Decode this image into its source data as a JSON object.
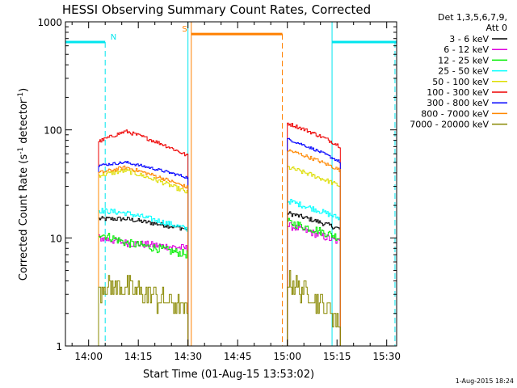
{
  "chart_data": {
    "type": "line",
    "title": "HESSI Observing Summary Count Rates, Corrected",
    "xlabel": "Start Time (01-Aug-15 13:53:02)",
    "ylabel": "Corrected Count Rate (s⁻¹ detector⁻¹)",
    "ylabel_parts": {
      "a": "Corrected Count Rate (s",
      "b": "-1",
      "c": " detector",
      "d": "-1",
      "e": ")"
    },
    "y_scale": "log",
    "ylim": [
      1,
      1000
    ],
    "xlim_minutes_after_13_53_02": [
      0,
      100
    ],
    "x_ticks": [
      {
        "label": "14:00",
        "t": 7
      },
      {
        "label": "14:15",
        "t": 22
      },
      {
        "label": "14:30",
        "t": 37
      },
      {
        "label": "14:45",
        "t": 52
      },
      {
        "label": "15:00",
        "t": 67
      },
      {
        "label": "15:15",
        "t": 82
      },
      {
        "label": "15:30",
        "t": 97
      }
    ],
    "y_ticks": [
      {
        "label": "1",
        "v": 1
      },
      {
        "label": "10",
        "v": 10
      },
      {
        "label": "100",
        "v": 100
      },
      {
        "label": "1000",
        "v": 1000
      }
    ],
    "legend": {
      "header_line1": "Det 1,3,5,6,7,9,",
      "header_line2": "Att 0",
      "placement": "right"
    },
    "series": [
      {
        "name": "3 - 6 keV",
        "color": "#000000",
        "seg1": {
          "start": 15,
          "peak": 15,
          "end": 12
        },
        "seg2": {
          "start": 17,
          "end": 12
        },
        "noise": 0.05
      },
      {
        "name": "6 - 12 keV",
        "color": "#dd00dd",
        "seg1": {
          "start": 10,
          "peak": 9,
          "end": 8
        },
        "seg2": {
          "start": 13,
          "end": 9
        },
        "noise": 0.08
      },
      {
        "name": "12 - 25 keV",
        "color": "#00ee00",
        "seg1": {
          "start": 11,
          "peak": 9,
          "end": 7
        },
        "seg2": {
          "start": 14,
          "end": 10
        },
        "noise": 0.09
      },
      {
        "name": "25 - 50 keV",
        "color": "#00ffff",
        "seg1": {
          "start": 18,
          "peak": 17,
          "end": 12
        },
        "seg2": {
          "start": 22,
          "end": 15
        },
        "noise": 0.06
      },
      {
        "name": "50 - 100 keV",
        "color": "#dddd00",
        "seg1": {
          "start": 38,
          "peak": 42,
          "end": 26
        },
        "seg2": {
          "start": 45,
          "end": 30
        },
        "noise": 0.05
      },
      {
        "name": "100 - 300 keV",
        "color": "#ee0000",
        "seg1": {
          "start": 78,
          "peak": 97,
          "end": 57
        },
        "seg2": {
          "start": 115,
          "end": 70
        },
        "noise": 0.04
      },
      {
        "name": "300 - 800 keV",
        "color": "#0000ff",
        "seg1": {
          "start": 47,
          "peak": 50,
          "end": 36
        },
        "seg2": {
          "start": 82,
          "end": 50
        },
        "noise": 0.03
      },
      {
        "name": "800 - 7000 keV",
        "color": "#ff8800",
        "seg1": {
          "start": 40,
          "peak": 45,
          "end": 29
        },
        "seg2": {
          "start": 65,
          "end": 42
        },
        "noise": 0.04
      },
      {
        "name": "7000 - 20000 keV",
        "color": "#888800",
        "seg1": {
          "start": 3.5,
          "peak": 3.5,
          "end": 2
        },
        "seg2": {
          "start": 4,
          "end": 1.5
        },
        "noise": 0.25
      }
    ],
    "data_segments_minutes": [
      [
        10,
        37
      ],
      [
        67,
        83
      ]
    ],
    "flags": [
      {
        "label": "N",
        "color": "#00e5ee",
        "bars": [
          [
            0,
            12
          ],
          [
            80.5,
            100
          ]
        ],
        "level": 650,
        "dashed": [
          12,
          99.5
        ],
        "solid": [
          80.5
        ]
      },
      {
        "label": "S",
        "color": "#ff8000",
        "bars": [
          [
            38,
            65.5
          ]
        ],
        "level": 770,
        "dashed": [
          65.5
        ],
        "solid": [
          38
        ]
      }
    ],
    "extra_lines": [
      {
        "t": 37,
        "color": "#00e5ee"
      }
    ],
    "grid": false
  },
  "footer": {
    "timestamp": "1-Aug-2015 18:24"
  }
}
